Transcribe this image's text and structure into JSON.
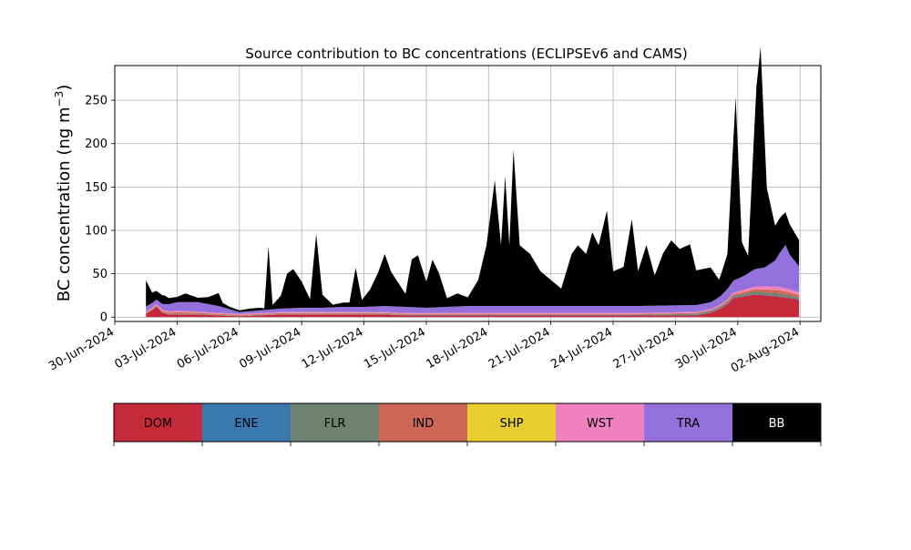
{
  "chart_data": {
    "type": "area",
    "stacked": true,
    "title": "Source contribution to BC concentrations (ECLIPSEv6 and CAMS)",
    "ylabel_main": "BC concentration (ng m",
    "ylabel_sup": "−3",
    "ylabel_close": ")",
    "xlabel": "",
    "xlim": [
      "2024-06-30",
      "2024-08-03"
    ],
    "ylim": [
      -5,
      290
    ],
    "y_ticks": [
      0,
      50,
      100,
      150,
      200,
      250
    ],
    "y_tick_labels": [
      "0",
      "50",
      "100",
      "150",
      "200",
      "250"
    ],
    "x_ticks": [
      "2024-06-30",
      "2024-07-03",
      "2024-07-06",
      "2024-07-09",
      "2024-07-12",
      "2024-07-15",
      "2024-07-18",
      "2024-07-21",
      "2024-07-24",
      "2024-07-27",
      "2024-07-30",
      "2024-08-02"
    ],
    "x_tick_labels": [
      "30-Jun-2024",
      "03-Jul-2024",
      "06-Jul-2024",
      "09-Jul-2024",
      "12-Jul-2024",
      "15-Jul-2024",
      "18-Jul-2024",
      "21-Jul-2024",
      "24-Jul-2024",
      "27-Jul-2024",
      "30-Jul-2024",
      "02-Aug-2024"
    ],
    "grid": true,
    "legend_placement": "below",
    "series": [
      {
        "name": "DOM",
        "color": "#c62a3a",
        "values": [
          [
            1.5,
            4
          ],
          [
            1.8,
            8
          ],
          [
            2.0,
            12
          ],
          [
            2.3,
            5
          ],
          [
            2.6,
            3
          ],
          [
            3,
            3
          ],
          [
            4,
            3
          ],
          [
            5,
            2
          ],
          [
            6,
            1
          ],
          [
            7,
            2
          ],
          [
            8,
            3
          ],
          [
            9,
            3
          ],
          [
            10,
            3
          ],
          [
            11,
            3
          ],
          [
            12,
            3
          ],
          [
            13,
            3
          ],
          [
            14,
            2
          ],
          [
            15,
            2
          ],
          [
            16,
            2
          ],
          [
            17,
            2
          ],
          [
            18,
            2
          ],
          [
            19,
            2
          ],
          [
            20,
            2
          ],
          [
            21,
            2
          ],
          [
            22,
            2
          ],
          [
            23,
            2
          ],
          [
            24,
            2
          ],
          [
            25,
            2
          ],
          [
            26,
            2
          ],
          [
            27,
            2
          ],
          [
            28,
            2
          ],
          [
            28.7,
            5
          ],
          [
            29.2,
            10
          ],
          [
            29.5,
            15
          ],
          [
            29.8,
            22
          ],
          [
            30.3,
            24
          ],
          [
            30.8,
            26
          ],
          [
            31.3,
            25
          ],
          [
            31.8,
            24
          ],
          [
            32.5,
            22
          ],
          [
            32.95,
            20
          ]
        ]
      },
      {
        "name": "ENE",
        "color": "#3a78b0",
        "values": [
          [
            1.5,
            0.3
          ],
          [
            5,
            0.3
          ],
          [
            10,
            0.3
          ],
          [
            15,
            0.3
          ],
          [
            20,
            0.3
          ],
          [
            25,
            0.3
          ],
          [
            30,
            0.5
          ],
          [
            32.95,
            0.5
          ]
        ]
      },
      {
        "name": "FLR",
        "color": "#6e8370",
        "values": [
          [
            1.5,
            0.3
          ],
          [
            5,
            0.3
          ],
          [
            10,
            0.3
          ],
          [
            15,
            0.3
          ],
          [
            20,
            0.3
          ],
          [
            25,
            0.3
          ],
          [
            30,
            2
          ],
          [
            31,
            3
          ],
          [
            32,
            3
          ],
          [
            32.95,
            2
          ]
        ]
      },
      {
        "name": "IND",
        "color": "#cc6656",
        "values": [
          [
            1.5,
            0.5
          ],
          [
            2,
            1
          ],
          [
            3,
            2
          ],
          [
            4,
            1.5
          ],
          [
            5,
            1
          ],
          [
            6,
            1
          ],
          [
            7,
            1
          ],
          [
            8,
            1
          ],
          [
            9,
            1
          ],
          [
            10,
            1
          ],
          [
            11,
            1
          ],
          [
            12,
            1
          ],
          [
            13,
            1
          ],
          [
            14,
            1
          ],
          [
            15,
            1
          ],
          [
            20,
            1
          ],
          [
            25,
            1
          ],
          [
            29,
            1
          ],
          [
            30,
            2
          ],
          [
            31,
            3
          ],
          [
            32,
            4
          ],
          [
            32.95,
            3
          ]
        ]
      },
      {
        "name": "SHP",
        "color": "#e8cf2f",
        "values": [
          [
            1.5,
            0.2
          ],
          [
            10,
            0.2
          ],
          [
            20,
            0.2
          ],
          [
            30,
            0.2
          ],
          [
            32.95,
            0.2
          ]
        ]
      },
      {
        "name": "WST",
        "color": "#f080c0",
        "values": [
          [
            1.5,
            1
          ],
          [
            2,
            1.5
          ],
          [
            3,
            1.5
          ],
          [
            4,
            1
          ],
          [
            5,
            1
          ],
          [
            6,
            1
          ],
          [
            7,
            1
          ],
          [
            8,
            1
          ],
          [
            9,
            1
          ],
          [
            10,
            1
          ],
          [
            11,
            1
          ],
          [
            12,
            1
          ],
          [
            13,
            1
          ],
          [
            14,
            1
          ],
          [
            15,
            1
          ],
          [
            20,
            1
          ],
          [
            25,
            1
          ],
          [
            29,
            1
          ],
          [
            30,
            2
          ],
          [
            31,
            3
          ],
          [
            32,
            4
          ],
          [
            32.95,
            3
          ]
        ]
      },
      {
        "name": "TRA",
        "color": "#9370db",
        "values": [
          [
            1.5,
            6
          ],
          [
            2,
            5
          ],
          [
            3,
            10
          ],
          [
            4,
            11
          ],
          [
            5,
            8
          ],
          [
            6,
            2
          ],
          [
            7,
            3
          ],
          [
            8,
            4
          ],
          [
            9,
            5
          ],
          [
            10,
            5
          ],
          [
            11,
            6
          ],
          [
            12,
            6
          ],
          [
            13,
            7
          ],
          [
            14,
            7
          ],
          [
            15,
            6
          ],
          [
            16,
            7
          ],
          [
            17,
            8
          ],
          [
            18,
            8
          ],
          [
            19,
            8
          ],
          [
            20,
            8
          ],
          [
            21,
            8
          ],
          [
            22,
            8
          ],
          [
            23,
            8
          ],
          [
            24,
            8
          ],
          [
            25,
            8
          ],
          [
            26,
            8
          ],
          [
            27,
            8
          ],
          [
            28,
            8
          ],
          [
            28.7,
            8
          ],
          [
            29.2,
            10
          ],
          [
            29.5,
            12
          ],
          [
            29.8,
            14
          ],
          [
            30.3,
            16
          ],
          [
            30.8,
            20
          ],
          [
            31.3,
            22
          ],
          [
            31.8,
            30
          ],
          [
            32.3,
            50
          ],
          [
            32.5,
            40
          ],
          [
            32.95,
            30
          ]
        ]
      },
      {
        "name": "BB",
        "color": "#000000",
        "values": [
          [
            1.5,
            30
          ],
          [
            1.8,
            12
          ],
          [
            2.0,
            10
          ],
          [
            2.4,
            10
          ],
          [
            2.6,
            7
          ],
          [
            3,
            6
          ],
          [
            3.4,
            10
          ],
          [
            4,
            5
          ],
          [
            4.5,
            8
          ],
          [
            5,
            15
          ],
          [
            5.2,
            5
          ],
          [
            5.5,
            3
          ],
          [
            6,
            2
          ],
          [
            6.5,
            3
          ],
          [
            7,
            3
          ],
          [
            7.2,
            2
          ],
          [
            7.4,
            73
          ],
          [
            7.6,
            5
          ],
          [
            8,
            15
          ],
          [
            8.3,
            40
          ],
          [
            8.6,
            45
          ],
          [
            9,
            30
          ],
          [
            9.4,
            10
          ],
          [
            9.7,
            85
          ],
          [
            10,
            15
          ],
          [
            10.5,
            3
          ],
          [
            11,
            5
          ],
          [
            11.3,
            5
          ],
          [
            11.6,
            45
          ],
          [
            11.9,
            8
          ],
          [
            12.3,
            20
          ],
          [
            12.7,
            40
          ],
          [
            13.0,
            60
          ],
          [
            13.3,
            40
          ],
          [
            14.0,
            15
          ],
          [
            14.3,
            55
          ],
          [
            14.6,
            60
          ],
          [
            15,
            30
          ],
          [
            15.3,
            55
          ],
          [
            15.6,
            40
          ],
          [
            16,
            10
          ],
          [
            16.5,
            15
          ],
          [
            17,
            10
          ],
          [
            17.5,
            30
          ],
          [
            17.9,
            70
          ],
          [
            18.3,
            145
          ],
          [
            18.6,
            70
          ],
          [
            18.8,
            150
          ],
          [
            19.0,
            70
          ],
          [
            19.2,
            180
          ],
          [
            19.5,
            70
          ],
          [
            20,
            60
          ],
          [
            20.5,
            40
          ],
          [
            21,
            30
          ],
          [
            21.5,
            20
          ],
          [
            22,
            60
          ],
          [
            22.3,
            70
          ],
          [
            22.7,
            60
          ],
          [
            23,
            85
          ],
          [
            23.3,
            70
          ],
          [
            23.7,
            110
          ],
          [
            24,
            40
          ],
          [
            24.5,
            45
          ],
          [
            24.9,
            100
          ],
          [
            25.2,
            40
          ],
          [
            25.6,
            70
          ],
          [
            26,
            35
          ],
          [
            26.4,
            60
          ],
          [
            26.8,
            75
          ],
          [
            27.2,
            65
          ],
          [
            27.7,
            70
          ],
          [
            28,
            40
          ],
          [
            28.4,
            40
          ],
          [
            28.7,
            40
          ],
          [
            29.1,
            20
          ],
          [
            29.5,
            40
          ],
          [
            29.9,
            210
          ],
          [
            30.2,
            40
          ],
          [
            30.5,
            20
          ],
          [
            30.9,
            210
          ],
          [
            31.1,
            255
          ],
          [
            31.4,
            90
          ],
          [
            31.8,
            40
          ],
          [
            32.1,
            40
          ],
          [
            32.5,
            35
          ],
          [
            32.95,
            30
          ]
        ]
      }
    ],
    "legend": [
      {
        "label": "DOM",
        "color": "#c62a3a",
        "text_color": "#000000"
      },
      {
        "label": "ENE",
        "color": "#3a78b0",
        "text_color": "#000000"
      },
      {
        "label": "FLR",
        "color": "#6e8370",
        "text_color": "#000000"
      },
      {
        "label": "IND",
        "color": "#cc6656",
        "text_color": "#000000"
      },
      {
        "label": "SHP",
        "color": "#e8cf2f",
        "text_color": "#000000"
      },
      {
        "label": "WST",
        "color": "#f080c0",
        "text_color": "#000000"
      },
      {
        "label": "TRA",
        "color": "#9370db",
        "text_color": "#000000"
      },
      {
        "label": "BB",
        "color": "#000000",
        "text_color": "#ffffff"
      }
    ]
  }
}
